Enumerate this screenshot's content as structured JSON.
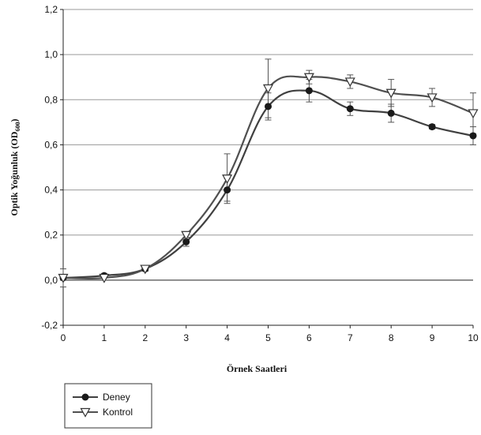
{
  "chart_data": {
    "type": "line",
    "title": "",
    "xlabel": "Örnek Saatleri",
    "ylabel": "Optik Yoğunluk (OD600)",
    "ylabel_main": "Optik Yoğunluk (OD",
    "ylabel_sub": "600",
    "ylabel_close": ")",
    "xlim": [
      0,
      10
    ],
    "ylim": [
      -0.2,
      1.2
    ],
    "x_ticks": [
      0,
      1,
      2,
      3,
      4,
      5,
      6,
      7,
      8,
      9,
      10
    ],
    "x_tick_labels": [
      "0",
      "1",
      "2",
      "3",
      "4",
      "5",
      "6",
      "7",
      "8",
      "9",
      "10"
    ],
    "y_ticks": [
      -0.2,
      0.0,
      0.2,
      0.4,
      0.6,
      0.8,
      1.0,
      1.2
    ],
    "y_tick_labels": [
      "-0,2",
      "0,0",
      "0,2",
      "0,4",
      "0,6",
      "0,8",
      "1,0",
      "1,2"
    ],
    "grid": true,
    "legend_position": "bottom-left",
    "x": [
      0,
      1,
      2,
      3,
      4,
      5,
      6,
      7,
      8,
      9,
      10
    ],
    "series": [
      {
        "name": "Deney",
        "marker": "filled-circle",
        "color": "#404040",
        "values": [
          0.01,
          0.02,
          0.05,
          0.17,
          0.4,
          0.77,
          0.84,
          0.76,
          0.74,
          0.68,
          0.64
        ],
        "errors": [
          0.01,
          0.01,
          0.01,
          0.02,
          0.05,
          0.06,
          0.05,
          0.03,
          0.04,
          0.01,
          0.04
        ]
      },
      {
        "name": "Kontrol",
        "marker": "open-triangle-down",
        "color": "#505050",
        "values": [
          0.01,
          0.01,
          0.05,
          0.2,
          0.45,
          0.85,
          0.9,
          0.88,
          0.83,
          0.81,
          0.74
        ],
        "errors": [
          0.04,
          0.01,
          0.01,
          0.01,
          0.11,
          0.13,
          0.03,
          0.03,
          0.06,
          0.04,
          0.09
        ]
      }
    ]
  }
}
